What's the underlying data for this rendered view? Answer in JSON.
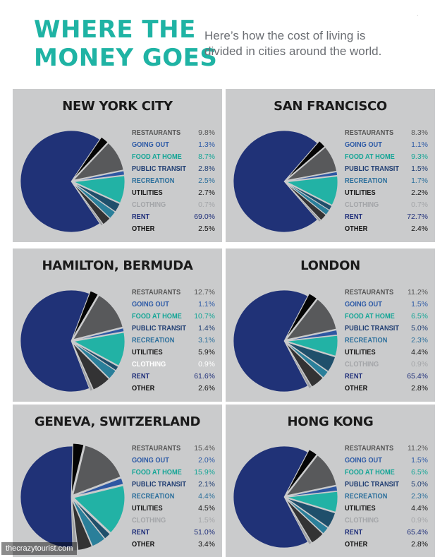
{
  "header": {
    "title_lines": [
      "WHERE THE",
      "MONEY GOES"
    ],
    "subtitle_lines": [
      "Here’s how the cost of living is",
      "divided in cities around the world."
    ],
    "corner_mark": "."
  },
  "watermark": "thecrazytourist.com",
  "colors": {
    "title": "#1fb3a4",
    "panel_bg": "#cacbcc",
    "categories": {
      "RESTAURANTS": "#58595b",
      "GOING OUT": "#2e57a2",
      "FOOD AT HOME": "#22b2a5",
      "PUBLIC TRANSIT": "#1f4f6b",
      "RECREATION": "#2a7f9a",
      "UTILITIES": "#333334",
      "CLOTHING": "#9ea0a3",
      "RENT": "#203277",
      "OTHER": "#050505"
    },
    "label_text": {
      "RESTAURANTS": "#555555",
      "GOING OUT": "#2d5aa6",
      "FOOD AT HOME": "#14a596",
      "PUBLIC TRANSIT": "#1f3d72",
      "RECREATION": "#2b6f9c",
      "UTILITIES": "#1a1a1a",
      "CLOTHING": "#a3a5a8",
      "RENT": "#1f2f7a",
      "OTHER": "#111111"
    }
  },
  "chart_data": [
    {
      "type": "pie",
      "title": "NEW YORK CITY",
      "categories": [
        "RESTAURANTS",
        "GOING OUT",
        "FOOD AT HOME",
        "PUBLIC TRANSIT",
        "RECREATION",
        "UTILITIES",
        "CLOTHING",
        "RENT",
        "OTHER"
      ],
      "labels": [
        "9.8%",
        "1.3%",
        "8.7%",
        "2.8%",
        "2.5%",
        "2.7%",
        "0.7%",
        "69.0%",
        "2.5%"
      ],
      "values": [
        9.8,
        1.3,
        8.7,
        2.8,
        2.5,
        2.7,
        0.7,
        69.0,
        2.5
      ]
    },
    {
      "type": "pie",
      "title": "SAN FRANCISCO",
      "categories": [
        "RESTAURANTS",
        "GOING OUT",
        "FOOD AT HOME",
        "PUBLIC TRANSIT",
        "RECREATION",
        "UTILITIES",
        "CLOTHING",
        "RENT",
        "OTHER"
      ],
      "labels": [
        "8.3%",
        "1.1%",
        "9.3%",
        "1.5%",
        "1.7%",
        "2.2%",
        "0.7%",
        "72.7%",
        "2.4%"
      ],
      "values": [
        8.3,
        1.1,
        9.3,
        1.5,
        1.7,
        2.2,
        0.7,
        72.7,
        2.4
      ]
    },
    {
      "type": "pie",
      "title": "HAMILTON, BERMUDA",
      "categories": [
        "RESTAURANTS",
        "GOING OUT",
        "FOOD AT HOME",
        "PUBLIC TRANSIT",
        "RECREATION",
        "UTILITIES",
        "CLOTHING",
        "RENT",
        "OTHER"
      ],
      "labels": [
        "12.7%",
        "1.1%",
        "10.7%",
        "1.4%",
        "3.1%",
        "5.9%",
        "0.9%",
        "61.6%",
        "2.6%"
      ],
      "values": [
        12.7,
        1.1,
        10.7,
        1.4,
        3.1,
        5.9,
        0.9,
        61.6,
        2.6
      ],
      "clothing_label_color": "#ffffff"
    },
    {
      "type": "pie",
      "title": "LONDON",
      "categories": [
        "RESTAURANTS",
        "GOING OUT",
        "FOOD AT HOME",
        "PUBLIC TRANSIT",
        "RECREATION",
        "UTILITIES",
        "CLOTHING",
        "RENT",
        "OTHER"
      ],
      "labels": [
        "11.2%",
        "1.5%",
        "6.5%",
        "5.0%",
        "2.3%",
        "4.4%",
        "0.9%",
        "65.4%",
        "2.8%"
      ],
      "values": [
        11.2,
        1.5,
        6.5,
        5.0,
        2.3,
        4.4,
        0.9,
        65.4,
        2.8
      ]
    },
    {
      "type": "pie",
      "title": "GENEVA, SWITZERLAND",
      "categories": [
        "RESTAURANTS",
        "GOING OUT",
        "FOOD AT HOME",
        "PUBLIC TRANSIT",
        "RECREATION",
        "UTILITIES",
        "CLOTHING",
        "RENT",
        "OTHER"
      ],
      "labels": [
        "15.4%",
        "2.0%",
        "15.9%",
        "2.1%",
        "4.4%",
        "4.5%",
        "1.5%",
        "51.0%",
        "3.4%"
      ],
      "values": [
        15.4,
        2.0,
        15.9,
        2.1,
        4.4,
        4.5,
        1.5,
        51.0,
        3.4
      ]
    },
    {
      "type": "pie",
      "title": "HONG KONG",
      "categories": [
        "RESTAURANTS",
        "GOING OUT",
        "FOOD AT HOME",
        "PUBLIC TRANSIT",
        "RECREATION",
        "UTILITIES",
        "CLOTHING",
        "RENT",
        "OTHER"
      ],
      "labels": [
        "11.2%",
        "1.5%",
        "6.5%",
        "5.0%",
        "2.3%",
        "4.4%",
        "0.9%",
        "65.4%",
        "2.8%"
      ],
      "values": [
        11.2,
        1.5,
        6.5,
        5.0,
        2.3,
        4.4,
        0.9,
        65.4,
        2.8
      ]
    }
  ]
}
